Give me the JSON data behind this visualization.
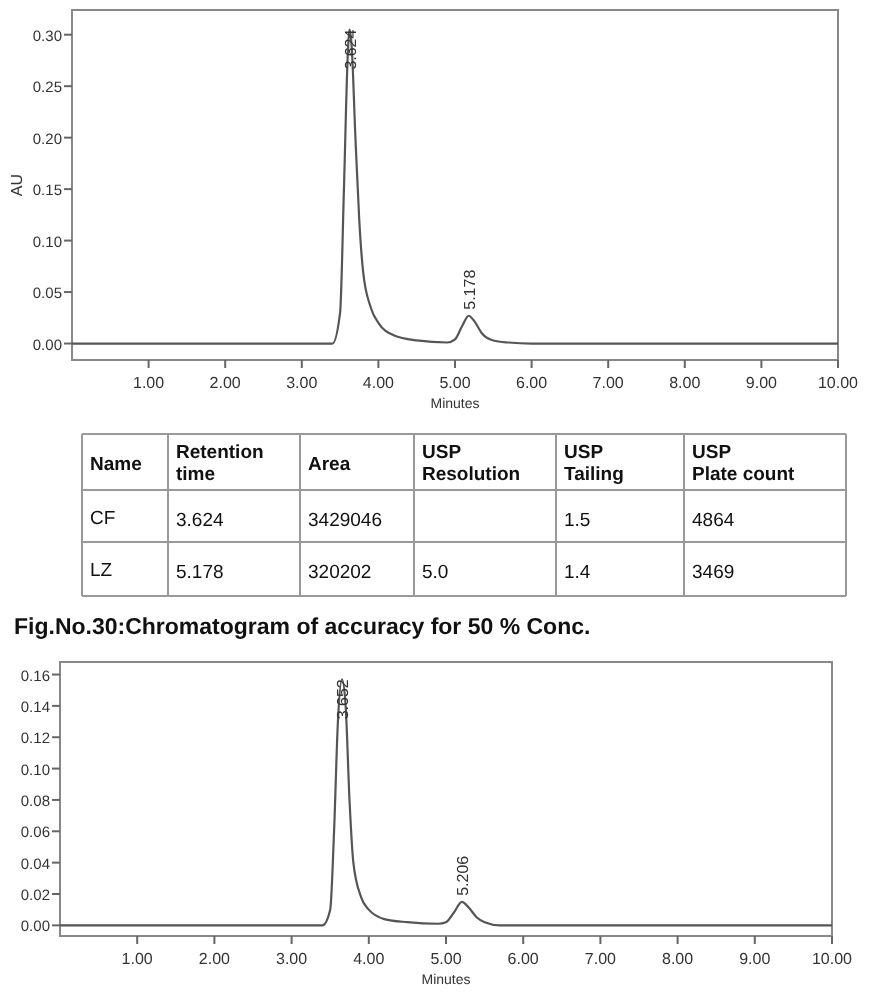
{
  "chart_data": [
    {
      "type": "line",
      "ylabel": "AU",
      "xlabel": "Minutes",
      "color": "#555555",
      "x": [
        0,
        3.4,
        3.5,
        3.55,
        3.6,
        3.624,
        3.65,
        3.7,
        3.75,
        3.8,
        3.9,
        4.0,
        4.2,
        4.5,
        4.9,
        5.0,
        5.1,
        5.178,
        5.25,
        5.35,
        5.5,
        5.7,
        6.0,
        10
      ],
      "values": [
        0,
        0,
        0.03,
        0.15,
        0.28,
        0.305,
        0.29,
        0.2,
        0.12,
        0.07,
        0.035,
        0.02,
        0.008,
        0.003,
        0.001,
        0.004,
        0.018,
        0.027,
        0.022,
        0.01,
        0.003,
        0.001,
        0,
        0
      ],
      "xlim": [
        0,
        10
      ],
      "ylim": [
        -0.016,
        0.324
      ],
      "xticks": [
        {
          "value": 1,
          "label": "1.00"
        },
        {
          "value": 2,
          "label": "2.00"
        },
        {
          "value": 3,
          "label": "3.00"
        },
        {
          "value": 4,
          "label": "4.00"
        },
        {
          "value": 5,
          "label": "5.00"
        },
        {
          "value": 6,
          "label": "6.00"
        },
        {
          "value": 7,
          "label": "7.00"
        },
        {
          "value": 8,
          "label": "8.00"
        },
        {
          "value": 9,
          "label": "9.00"
        },
        {
          "value": 10,
          "label": "10.00"
        }
      ],
      "yticks": [
        {
          "value": 0,
          "label": "0.00"
        },
        {
          "value": 0.05,
          "label": "0.05"
        },
        {
          "value": 0.1,
          "label": "0.10"
        },
        {
          "value": 0.15,
          "label": "0.15"
        },
        {
          "value": 0.2,
          "label": "0.20"
        },
        {
          "value": 0.25,
          "label": "0.25"
        },
        {
          "value": 0.3,
          "label": "0.30"
        }
      ],
      "annotations": [
        {
          "text": "3.624",
          "x": 3.624,
          "y": 0.305
        },
        {
          "text": "5.178",
          "x": 5.178,
          "y": 0.027
        }
      ],
      "grid": false,
      "marker": "none"
    },
    {
      "type": "other",
      "categories": [
        "Name",
        "Retention time",
        "Area",
        "USP Resolution",
        "USP Tailing",
        "USP Plate count"
      ],
      "y_categories": [
        "CF",
        "LZ"
      ],
      "cell_labels": [
        [
          "3.624",
          "3429046",
          null,
          "1.5",
          "4864"
        ],
        [
          "5.178",
          "320202",
          "5.0",
          "1.4",
          "3469"
        ]
      ],
      "annotations": [
        "Fig.No.30:Chromatogram of accuracy for 50 % Conc."
      ]
    },
    {
      "type": "line",
      "xlabel": "Minutes",
      "color": "#555555",
      "x": [
        0,
        3.4,
        3.5,
        3.55,
        3.6,
        3.652,
        3.7,
        3.75,
        3.8,
        3.9,
        4.0,
        4.2,
        4.5,
        4.9,
        5.0,
        5.1,
        5.206,
        5.3,
        5.4,
        5.5,
        5.7,
        6.0,
        10
      ],
      "values": [
        0,
        0,
        0.01,
        0.06,
        0.13,
        0.157,
        0.14,
        0.08,
        0.04,
        0.018,
        0.01,
        0.004,
        0.002,
        0.001,
        0.002,
        0.008,
        0.015,
        0.011,
        0.005,
        0.002,
        0,
        0,
        0
      ],
      "xlim": [
        0,
        10
      ],
      "ylim": [
        -0.0068,
        0.168
      ],
      "xticks": [
        {
          "value": 1,
          "label": "1.00"
        },
        {
          "value": 2,
          "label": "2.00"
        },
        {
          "value": 3,
          "label": "3.00"
        },
        {
          "value": 4,
          "label": "4.00"
        },
        {
          "value": 5,
          "label": "5.00"
        },
        {
          "value": 6,
          "label": "6.00"
        },
        {
          "value": 7,
          "label": "7.00"
        },
        {
          "value": 8,
          "label": "8.00"
        },
        {
          "value": 9,
          "label": "9.00"
        },
        {
          "value": 10,
          "label": "10.00"
        }
      ],
      "yticks": [
        {
          "value": 0,
          "label": "0.00"
        },
        {
          "value": 0.02,
          "label": "0.02"
        },
        {
          "value": 0.04,
          "label": "0.04"
        },
        {
          "value": 0.06,
          "label": "0.06"
        },
        {
          "value": 0.08,
          "label": "0.08"
        },
        {
          "value": 0.1,
          "label": "0.10"
        },
        {
          "value": 0.12,
          "label": "0.12"
        },
        {
          "value": 0.14,
          "label": "0.14"
        },
        {
          "value": 0.16,
          "label": "0.16"
        }
      ],
      "annotations": [
        {
          "text": "3.652",
          "x": 3.652,
          "y": 0.157
        },
        {
          "text": "5.206",
          "x": 5.206,
          "y": 0.015
        }
      ],
      "grid": false,
      "marker": "none"
    }
  ]
}
